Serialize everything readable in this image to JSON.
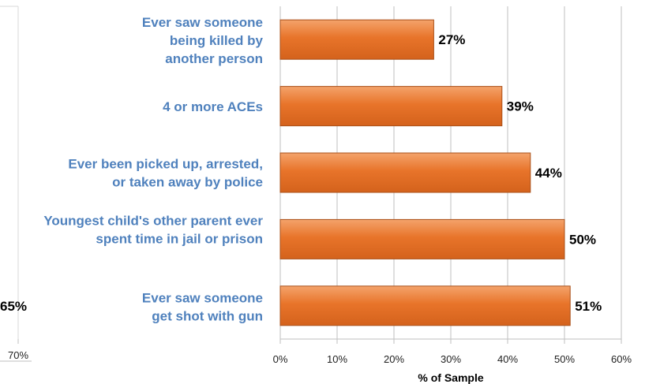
{
  "chart_data": {
    "type": "bar",
    "orientation": "horizontal",
    "categories": [
      [
        "Ever saw someone",
        "being killed by",
        "another person"
      ],
      [
        "4 or more ACEs"
      ],
      [
        "Ever been picked up, arrested,",
        "or taken away by police"
      ],
      [
        "Youngest child's other parent ever",
        "spent time in jail or prison"
      ],
      [
        "Ever saw someone",
        "get shot with gun"
      ]
    ],
    "values": [
      27,
      39,
      44,
      50,
      51
    ],
    "value_labels": [
      "27%",
      "39%",
      "44%",
      "50%",
      "51%"
    ],
    "xlabel": "% of Sample",
    "xlim": [
      0,
      60
    ],
    "xticks": [
      "0%",
      "10%",
      "20%",
      "30%",
      "40%",
      "50%",
      "60%"
    ],
    "grid": true,
    "colors": {
      "bar": "#e8742a",
      "bar_edge": "#a9501a",
      "grid": "#bfbfbf",
      "category": "#4f81bd"
    }
  },
  "left_fragment": {
    "value_label": "65%",
    "tick_label": "70%"
  }
}
